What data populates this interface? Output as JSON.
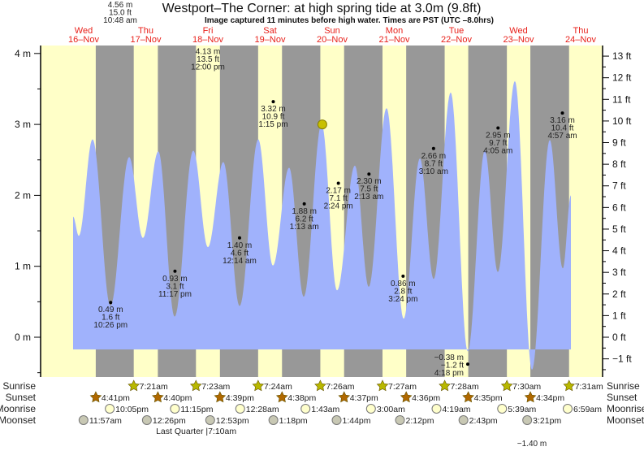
{
  "header": {
    "title": "Westport–The Corner: at high  spring tide at 3.0m (9.8ft)",
    "subtitle": "Image captured 11 minutes before high water. Times are PST (UTC –8.0hrs)"
  },
  "colors": {
    "day": "#ffffc8",
    "night": "#989898",
    "water": "#a0b2fc",
    "sunrise": "#b8b800",
    "sunset": "#b06800",
    "moonrise": "#ffffcc",
    "moonset": "#c8c8b4",
    "day_label": "#e8201a",
    "now_marker": "#c8c000"
  },
  "chart_data": {
    "type": "area",
    "title": "Westport–The Corner: at high  spring tide at 3.0m (9.8ft)",
    "x_unit": "hours since 16-Nov 00:00 PST",
    "xlim": [
      -4.5,
      212.5
    ],
    "ylim_m": [
      -0.56,
      4.11
    ],
    "days": [
      {
        "dow": "Wed",
        "date": "16–Nov"
      },
      {
        "dow": "Thu",
        "date": "17–Nov"
      },
      {
        "dow": "Fri",
        "date": "18–Nov"
      },
      {
        "dow": "Sat",
        "date": "19–Nov"
      },
      {
        "dow": "Sun",
        "date": "20–Nov"
      },
      {
        "dow": "Mon",
        "date": "21–Nov"
      },
      {
        "dow": "Tue",
        "date": "22–Nov"
      },
      {
        "dow": "Wed",
        "date": "23–Nov"
      },
      {
        "dow": "Thu",
        "date": "24–Nov"
      }
    ],
    "left_axis": {
      "unit": "m",
      "ticks": [
        "4 m",
        "3 m",
        "2 m",
        "1 m",
        "0 m"
      ],
      "values": [
        4,
        3,
        2,
        1,
        0
      ]
    },
    "right_axis": {
      "unit": "ft",
      "ticks": [
        "13 ft",
        "12 ft",
        "11 ft",
        "10 ft",
        "9 ft",
        "8 ft",
        "7 ft",
        "6 ft",
        "5 ft",
        "4 ft",
        "3 ft",
        "2 ft",
        "1 ft",
        "0 ft",
        "−1 ft"
      ],
      "values": [
        13,
        12,
        11,
        10,
        9,
        8,
        7,
        6,
        5,
        4,
        3,
        2,
        1,
        0,
        -1
      ]
    },
    "tide_curve_extrema": [
      [
        7.92,
        1.7
      ],
      [
        10.12,
        1.43
      ],
      [
        15.45,
        2.79
      ],
      [
        22.35,
        0.44
      ],
      [
        29.57,
        2.54
      ],
      [
        34.9,
        1.4
      ],
      [
        40.86,
        2.62
      ],
      [
        47.14,
        0.29
      ],
      [
        54.35,
        2.63
      ],
      [
        60.0,
        1.27
      ],
      [
        65.96,
        2.47
      ],
      [
        72.24,
        0.44
      ],
      [
        79.45,
        2.79
      ],
      [
        85.1,
        1.01
      ],
      [
        91.37,
        2.39
      ],
      [
        97.02,
        0.57
      ],
      [
        103.92,
        3.01
      ],
      [
        109.88,
        0.66
      ],
      [
        116.78,
        2.42
      ],
      [
        122.12,
        0.71
      ],
      [
        129.02,
        3.23
      ],
      [
        135.61,
        0.26
      ],
      [
        141.88,
        2.52
      ],
      [
        147.21,
        0.82
      ],
      [
        153.8,
        3.45
      ],
      [
        160.39,
        -0.2
      ],
      [
        166.98,
        2.63
      ],
      [
        172.0,
        0.92
      ],
      [
        178.59,
        3.61
      ],
      [
        185.18,
        -0.46
      ],
      [
        192.08,
        2.78
      ],
      [
        197.1,
        0.97
      ],
      [
        200.24,
        2.0
      ]
    ],
    "now": {
      "t": 104.2,
      "height_m": 3.0
    },
    "annotations": [
      {
        "t": 34.8,
        "m": 4.56,
        "lines": [
          "4.56 m",
          "15.0 ft",
          "10:48 am"
        ]
      },
      {
        "t": 60.0,
        "m": 4.13,
        "lines": [
          "4.13 m",
          "13.5 ft",
          "12:00 pm"
        ]
      },
      {
        "t": 22.43,
        "m": 0.49,
        "lines": [
          "0.49 m",
          "1.6 ft",
          "10:26 pm"
        ]
      },
      {
        "t": 47.28,
        "m": 0.93,
        "lines": [
          "0.93 m",
          "3.1 ft",
          "11:17 pm"
        ]
      },
      {
        "t": 72.23,
        "m": 1.4,
        "lines": [
          "1.40 m",
          "4.6 ft",
          "12:14 am"
        ]
      },
      {
        "t": 85.25,
        "m": 3.32,
        "lines": [
          "3.32 m",
          "10.9 ft",
          "1:15 pm"
        ]
      },
      {
        "t": 97.22,
        "m": 1.88,
        "lines": [
          "1.88 m",
          "6.2 ft",
          "1:13 am"
        ]
      },
      {
        "t": 110.4,
        "m": 2.17,
        "lines": [
          "2.17 m",
          "7.1 ft",
          "2:24 pm"
        ]
      },
      {
        "t": 122.22,
        "m": 2.3,
        "lines": [
          "2.30 m",
          "7.5 ft",
          "2:13 am"
        ]
      },
      {
        "t": 135.4,
        "m": 0.86,
        "lines": [
          "0.86 m",
          "2.8 ft",
          "3:24 pm"
        ]
      },
      {
        "t": 147.17,
        "m": 2.66,
        "lines": [
          "2.66 m",
          "8.7 ft",
          "3:10 am"
        ]
      },
      {
        "t": 160.39,
        "m": -0.38,
        "lines": [
          "−0.38 m",
          "−1.2 ft",
          "4:18 pm"
        ]
      },
      {
        "t": 172.08,
        "m": 2.95,
        "lines": [
          "2.95 m",
          "9.7 ft",
          "4:05 am"
        ]
      },
      {
        "t": 196.95,
        "m": 3.16,
        "lines": [
          "3.16 m",
          "10.4 ft",
          "4:57 am"
        ]
      },
      {
        "t": 185.18,
        "m": -1.4,
        "lines": [
          "−1.40 m"
        ],
        "offchart": true
      }
    ],
    "sunrise": [
      [
        31.35,
        "7:21am"
      ],
      [
        55.38,
        "7:23am"
      ],
      [
        79.4,
        "7:24am"
      ],
      [
        103.43,
        "7:26am"
      ],
      [
        127.45,
        "7:27am"
      ],
      [
        151.47,
        "7:28am"
      ],
      [
        175.5,
        "7:30am"
      ],
      [
        199.52,
        "7:31am"
      ]
    ],
    "sunset": [
      [
        16.68,
        "4:41pm"
      ],
      [
        40.67,
        "4:40pm"
      ],
      [
        64.65,
        "4:39pm"
      ],
      [
        88.63,
        "4:38pm"
      ],
      [
        112.62,
        "4:37pm"
      ],
      [
        136.6,
        "4:36pm"
      ],
      [
        160.58,
        "4:35pm"
      ],
      [
        184.57,
        "4:34pm"
      ]
    ],
    "moonrise": [
      [
        22.08,
        "10:05pm"
      ],
      [
        47.25,
        "11:15pm"
      ],
      [
        72.47,
        "12:28am"
      ],
      [
        97.72,
        "1:43am"
      ],
      [
        123.0,
        "3:00am"
      ],
      [
        148.32,
        "4:19am"
      ],
      [
        173.65,
        "5:39am"
      ],
      [
        198.98,
        "6:59am"
      ]
    ],
    "moonset": [
      [
        11.95,
        "11:57am"
      ],
      [
        36.43,
        "12:26pm"
      ],
      [
        60.88,
        "12:53pm"
      ],
      [
        85.3,
        "1:18pm"
      ],
      [
        109.73,
        "1:44pm"
      ],
      [
        134.2,
        "2:12pm"
      ],
      [
        158.72,
        "2:43pm"
      ],
      [
        183.35,
        "3:21pm"
      ]
    ],
    "moon_phase": {
      "t": 55.17,
      "label": "Last Quarter |7:10am"
    },
    "row_labels": {
      "sunrise": "Sunrise",
      "sunset": "Sunset",
      "moonrise": "Moonrise",
      "moonset": "Moonset"
    }
  }
}
